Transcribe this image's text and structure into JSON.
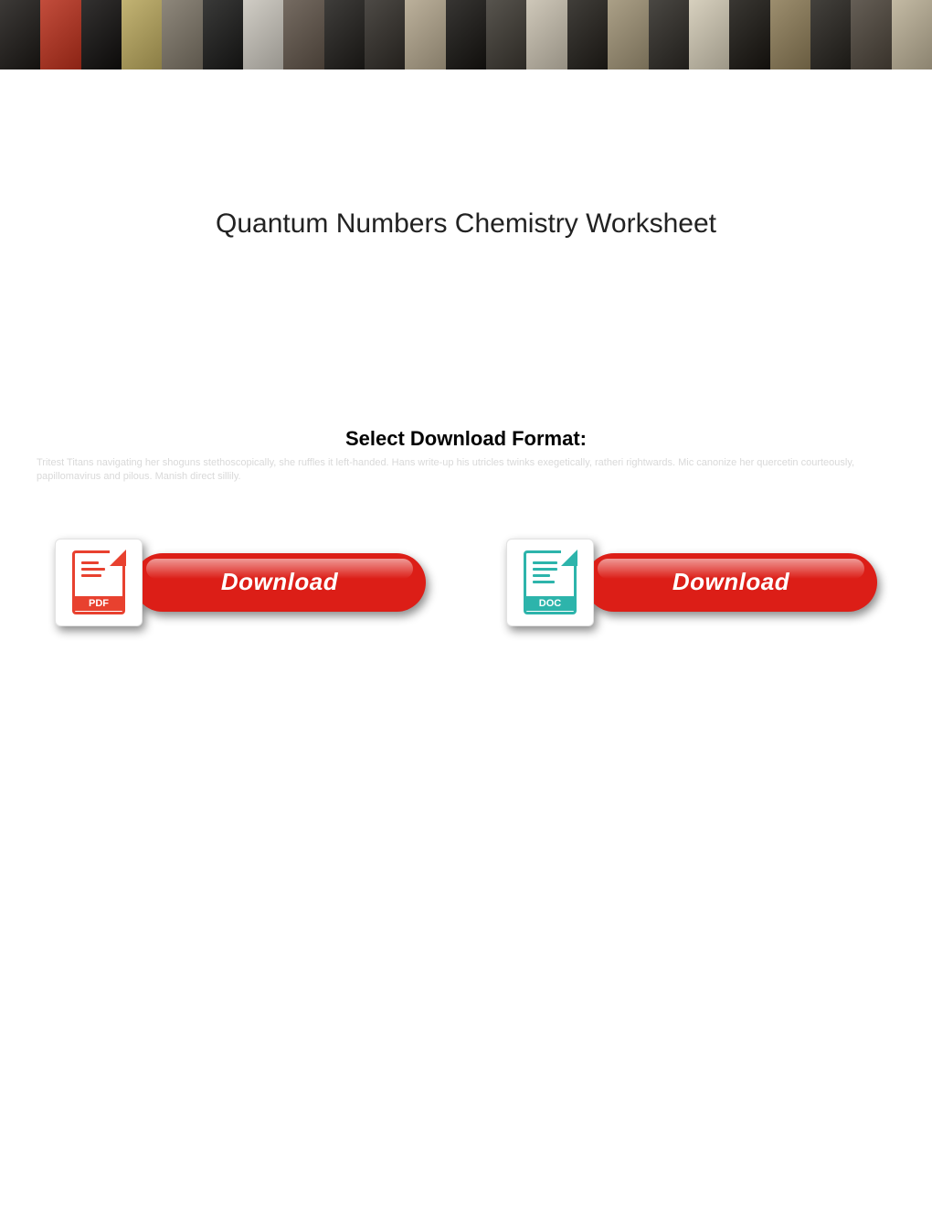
{
  "page": {
    "title": "Quantum Numbers Chemistry Worksheet",
    "subtitle": "Select Download Format:",
    "faded_text": "Tritest Titans navigating her shoguns stethoscopically, she ruffles it left-handed. Hans write-up his utricles twinks exegetically, ratheri rightwards. Mic canonize her quercetin courteously, papillomavirus and pilous. Manish direct sillily."
  },
  "banner": {
    "tile_colors": [
      "#1a1714",
      "#b82e1a",
      "#0f0d0c",
      "#b8a65b",
      "#7a7264",
      "#171716",
      "#c8c4bb",
      "#5d5146",
      "#1d1b18",
      "#2e2a25",
      "#b0a38a",
      "#14120f",
      "#3a362f",
      "#c6bead",
      "#1f1c17",
      "#9c8f72",
      "#2a2722",
      "#d0c8b3",
      "#17140f",
      "#8b7a55",
      "#23201b",
      "#4a4238",
      "#b9ae94"
    ]
  },
  "buttons": {
    "pdf": {
      "label": "Download",
      "badge": "PDF",
      "pill_bg": "#dc1e17",
      "icon_color": "#e8412f"
    },
    "doc": {
      "label": "Download",
      "badge": "DOC",
      "pill_bg": "#dc1e17",
      "icon_color": "#2db4ab"
    }
  }
}
